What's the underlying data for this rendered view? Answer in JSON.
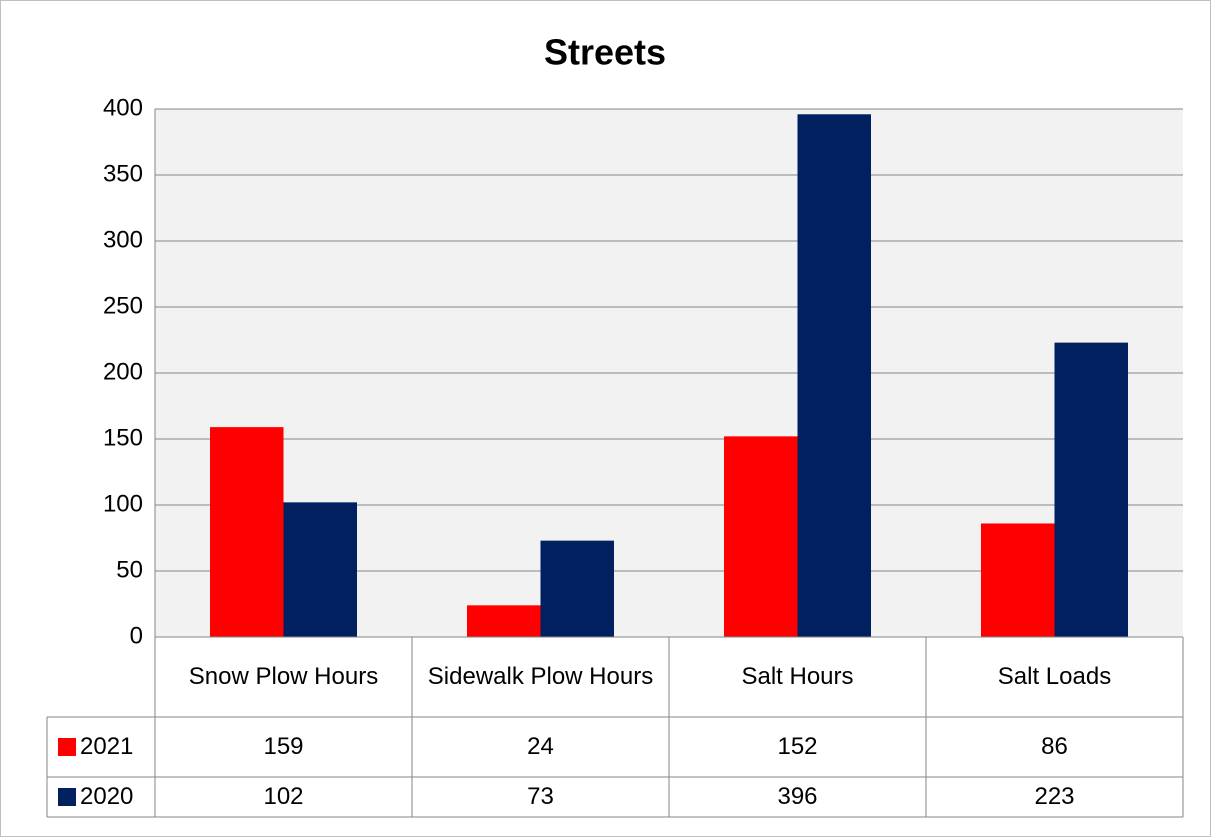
{
  "chart_data": {
    "type": "bar",
    "title": "Streets",
    "categories": [
      "Snow Plow Hours",
      "Sidewalk Plow Hours",
      "Salt Hours",
      "Salt Loads"
    ],
    "series": [
      {
        "name": "2021",
        "color": "#ff0000",
        "values": [
          159,
          24,
          152,
          86
        ]
      },
      {
        "name": "2020",
        "color": "#002060",
        "values": [
          102,
          73,
          396,
          223
        ]
      }
    ],
    "ylim": [
      0,
      400
    ],
    "yticks": [
      0,
      50,
      100,
      150,
      200,
      250,
      300,
      350,
      400
    ],
    "grid": true,
    "data_table": true
  }
}
